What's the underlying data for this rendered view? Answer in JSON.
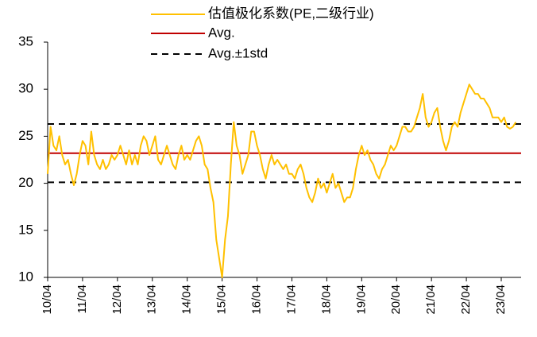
{
  "chart_data": {
    "type": "line",
    "x": [
      "10/04",
      "10/05",
      "10/06",
      "10/07",
      "10/08",
      "10/09",
      "10/10",
      "10/11",
      "10/12",
      "11/01",
      "11/02",
      "11/03",
      "11/04",
      "11/05",
      "11/06",
      "11/07",
      "11/08",
      "11/09",
      "11/10",
      "11/11",
      "11/12",
      "12/01",
      "12/02",
      "12/03",
      "12/04",
      "12/05",
      "12/06",
      "12/07",
      "12/08",
      "12/09",
      "12/10",
      "12/11",
      "12/12",
      "13/01",
      "13/02",
      "13/03",
      "13/04",
      "13/05",
      "13/06",
      "13/07",
      "13/08",
      "13/09",
      "13/10",
      "13/11",
      "13/12",
      "14/01",
      "14/02",
      "14/03",
      "14/04",
      "14/05",
      "14/06",
      "14/07",
      "14/08",
      "14/09",
      "14/10",
      "14/11",
      "14/12",
      "15/01",
      "15/02",
      "15/03",
      "15/04",
      "15/05",
      "15/06",
      "15/07",
      "15/08",
      "15/09",
      "15/10",
      "15/11",
      "15/12",
      "16/01",
      "16/02",
      "16/03",
      "16/04",
      "16/05",
      "16/06",
      "16/07",
      "16/08",
      "16/09",
      "16/10",
      "16/11",
      "16/12",
      "17/01",
      "17/02",
      "17/03",
      "17/04",
      "17/05",
      "17/06",
      "17/07",
      "17/08",
      "17/09",
      "17/10",
      "17/11",
      "17/12",
      "18/01",
      "18/02",
      "18/03",
      "18/04",
      "18/05",
      "18/06",
      "18/07",
      "18/08",
      "18/09",
      "18/10",
      "18/11",
      "18/12",
      "19/01",
      "19/02",
      "19/03",
      "19/04",
      "19/05",
      "19/06",
      "19/07",
      "19/08",
      "19/09",
      "19/10",
      "19/11",
      "19/12",
      "20/01",
      "20/02",
      "20/03",
      "20/04",
      "20/05",
      "20/06",
      "20/07",
      "20/08",
      "20/09",
      "20/10",
      "20/11",
      "20/12",
      "21/01",
      "21/02",
      "21/03",
      "21/04",
      "21/05",
      "21/06",
      "21/07",
      "21/08",
      "21/09",
      "21/10",
      "21/11",
      "21/12",
      "22/01",
      "22/02",
      "22/03",
      "22/04",
      "22/05",
      "22/06",
      "22/07",
      "22/08",
      "22/09",
      "22/10",
      "22/11",
      "22/12",
      "23/01",
      "23/02",
      "23/03",
      "23/04",
      "23/05",
      "23/06",
      "23/07",
      "23/08",
      "23/09"
    ],
    "series": [
      {
        "name": "估值极化系数(PE,二级行业)",
        "color": "#ffc000",
        "values": [
          21,
          26,
          24,
          23.5,
          25,
          23,
          22,
          22.5,
          21,
          19.8,
          21,
          23,
          24.5,
          24,
          22,
          25.5,
          23,
          22,
          21.5,
          22.5,
          21.5,
          22,
          23,
          22.5,
          23,
          24,
          23,
          22,
          23.5,
          22,
          23,
          22,
          24,
          25,
          24.5,
          23,
          24,
          25,
          22.5,
          22,
          23,
          24,
          23,
          22,
          21.5,
          23,
          24,
          22.5,
          23,
          22.5,
          23.5,
          24.5,
          25,
          24,
          22,
          21.5,
          19.5,
          18,
          14,
          12,
          10,
          14,
          16.5,
          22,
          26.5,
          24,
          23,
          21,
          22,
          23,
          25.5,
          25.5,
          24,
          23,
          21.5,
          20.5,
          22,
          23,
          22,
          22.5,
          22,
          21.5,
          22,
          21,
          21,
          20.5,
          21.5,
          22,
          21,
          19.5,
          18.5,
          18,
          19,
          20.5,
          19.5,
          20,
          19,
          20,
          21,
          19.5,
          20,
          19,
          18,
          18.5,
          18.5,
          19.5,
          21.5,
          23,
          24,
          23,
          23.5,
          22.5,
          22,
          21,
          20.5,
          21.5,
          22,
          23,
          24,
          23.5,
          24,
          25,
          26,
          26,
          25.5,
          25.5,
          26,
          27,
          28,
          29.5,
          27,
          26,
          26.5,
          27.5,
          28,
          26,
          24.5,
          23.5,
          24.5,
          26,
          26.5,
          26,
          27.5,
          28.5,
          29.5,
          30.5,
          30,
          29.5,
          29.5,
          29,
          29,
          28.5,
          28,
          27,
          27,
          27,
          26.5,
          27,
          26,
          25.8,
          26,
          26.5
        ]
      }
    ],
    "reference_lines": [
      {
        "name": "Avg.",
        "color": "#c00000",
        "values": [
          23.2
        ]
      },
      {
        "name": "Avg.±1std",
        "color": "#000000",
        "dashed": true,
        "values": [
          26.3,
          20.1
        ]
      }
    ],
    "xticks": [
      "10/04",
      "11/04",
      "12/04",
      "13/04",
      "14/04",
      "15/04",
      "16/04",
      "17/04",
      "18/04",
      "19/04",
      "20/04",
      "21/04",
      "22/04",
      "23/04"
    ],
    "ylim": [
      10,
      35
    ],
    "yticks": [
      10,
      15,
      20,
      25,
      30,
      35
    ],
    "grid": false
  }
}
